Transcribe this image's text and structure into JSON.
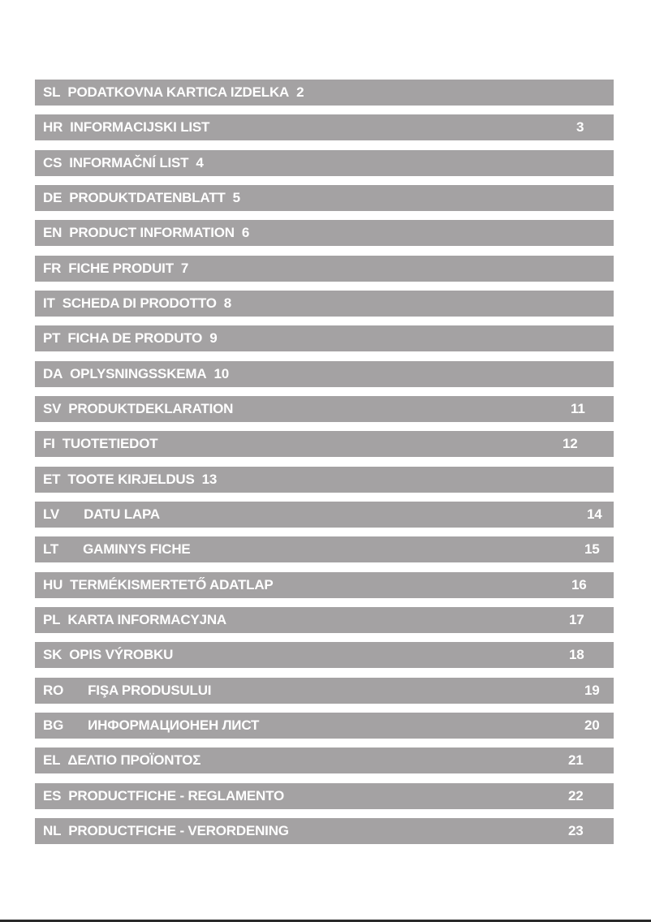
{
  "toc": [
    {
      "code": "SL",
      "title": "PODATKOVNA KARTICA IZDELKA",
      "page": "2"
    },
    {
      "code": "HR",
      "title": "INFORMACIJSKI LIST",
      "page": "3"
    },
    {
      "code": "CS",
      "title": "INFORMAČNÍ LIST",
      "page": "4"
    },
    {
      "code": "DE",
      "title": "PRODUKTDATENBLATT",
      "page": "5"
    },
    {
      "code": "EN",
      "title": "PRODUCT INFORMATION",
      "page": "6"
    },
    {
      "code": "FR",
      "title": "FICHE PRODUIT",
      "page": "7"
    },
    {
      "code": "IT",
      "title": "SCHEDA DI PRODOTTO",
      "page": "8"
    },
    {
      "code": "PT",
      "title": "FICHA DE PRODUTO",
      "page": "9"
    },
    {
      "code": "DA",
      "title": "OPLYSNINGSSKEMA",
      "page": "10"
    },
    {
      "code": "SV",
      "title": "PRODUKTDEKLARATION",
      "page": "11"
    },
    {
      "code": "FI",
      "title": "TUOTETIEDOT",
      "page": "12"
    },
    {
      "code": "ET",
      "title": "TOOTE KIRJELDUS",
      "page": "13"
    },
    {
      "code": "LV",
      "title": "DATU LAPA",
      "page": "14"
    },
    {
      "code": "LT",
      "title": "GAMINYS FICHE",
      "page": "15"
    },
    {
      "code": "HU",
      "title": "TERMÉKISMERTETŐ ADATLAP",
      "page": "16"
    },
    {
      "code": "PL",
      "title": "KARTA INFORMACYJNA",
      "page": "17"
    },
    {
      "code": "SK",
      "title": "OPIS VÝROBKU",
      "page": "18"
    },
    {
      "code": "RO",
      "title": "FIŞA PRODUSULUI",
      "page": "19"
    },
    {
      "code": "BG",
      "title": "ИНФОРМАЦИОНЕН ЛИСТ",
      "page": "20"
    },
    {
      "code": "EL",
      "title": "ΔΕΛΤΙΟ ΠΡΟΪΟΝΤΟΣ",
      "page": "21"
    },
    {
      "code": "ES",
      "title": "PRODUCTFICHE - REGLAMENTO",
      "page": "22"
    },
    {
      "code": "NL",
      "title": "PRODUCTFICHE - VERORDENING",
      "page": "23"
    }
  ],
  "colors": {
    "bar": "#a4a2a3",
    "text": "#ffffff"
  }
}
